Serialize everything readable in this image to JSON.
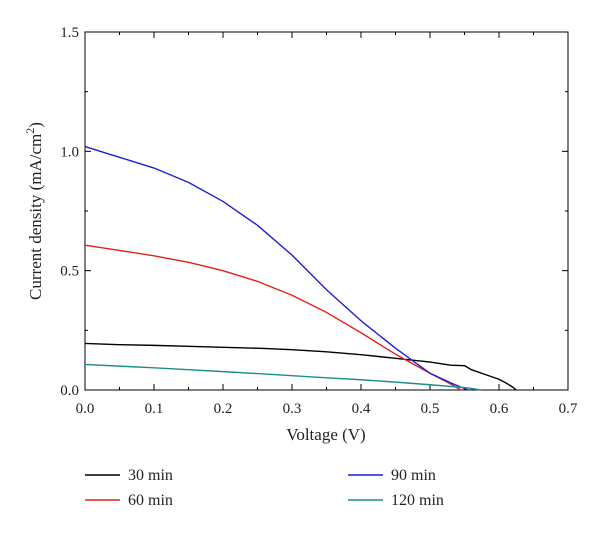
{
  "chart_data": {
    "type": "line",
    "title": "",
    "xlabel": "Voltage (V)",
    "ylabel": "Current density (mA/cm",
    "ylabel_sup": "2",
    "ylabel_close": ")",
    "xlim": [
      0,
      0.7
    ],
    "ylim": [
      0,
      1.5
    ],
    "xticks": [
      0.0,
      0.1,
      0.2,
      0.3,
      0.4,
      0.5,
      0.6,
      0.7
    ],
    "xtick_labels": [
      "0.0",
      "0.1",
      "0.2",
      "0.3",
      "0.4",
      "0.5",
      "0.6",
      "0.7"
    ],
    "yticks": [
      0.0,
      0.5,
      1.0,
      1.5
    ],
    "ytick_labels": [
      "0.0",
      "0.5",
      "1.0",
      "1.5"
    ],
    "grid": false,
    "legend_position": "bottom",
    "series": [
      {
        "name": "30 min",
        "color": "#000000",
        "x": [
          0.0,
          0.05,
          0.1,
          0.15,
          0.2,
          0.25,
          0.3,
          0.35,
          0.4,
          0.45,
          0.5,
          0.53,
          0.55,
          0.56,
          0.58,
          0.6,
          0.61,
          0.62,
          0.625
        ],
        "y": [
          0.195,
          0.19,
          0.187,
          0.183,
          0.179,
          0.175,
          0.169,
          0.16,
          0.148,
          0.133,
          0.117,
          0.104,
          0.102,
          0.085,
          0.065,
          0.045,
          0.03,
          0.012,
          0.0
        ]
      },
      {
        "name": "60 min",
        "color": "#e3201b",
        "x": [
          0.0,
          0.05,
          0.1,
          0.15,
          0.2,
          0.25,
          0.3,
          0.35,
          0.4,
          0.45,
          0.5,
          0.53,
          0.545
        ],
        "y": [
          0.607,
          0.585,
          0.562,
          0.535,
          0.5,
          0.455,
          0.397,
          0.325,
          0.24,
          0.15,
          0.07,
          0.025,
          0.0
        ]
      },
      {
        "name": "90 min",
        "color": "#1f1fd1",
        "x": [
          0.0,
          0.05,
          0.1,
          0.15,
          0.2,
          0.25,
          0.3,
          0.35,
          0.4,
          0.45,
          0.5,
          0.53,
          0.555
        ],
        "y": [
          1.02,
          0.975,
          0.93,
          0.87,
          0.79,
          0.69,
          0.565,
          0.42,
          0.29,
          0.175,
          0.07,
          0.03,
          0.0
        ]
      },
      {
        "name": "120 min",
        "color": "#1a8f8a",
        "x": [
          0.0,
          0.05,
          0.1,
          0.15,
          0.2,
          0.25,
          0.3,
          0.35,
          0.4,
          0.45,
          0.5,
          0.55,
          0.575
        ],
        "y": [
          0.107,
          0.1,
          0.093,
          0.085,
          0.077,
          0.069,
          0.06,
          0.051,
          0.043,
          0.033,
          0.022,
          0.01,
          0.0
        ]
      }
    ]
  }
}
